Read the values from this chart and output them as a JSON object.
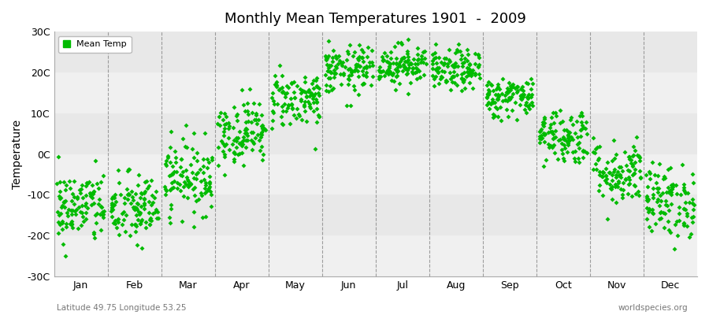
{
  "title": "Monthly Mean Temperatures 1901  -  2009",
  "ylabel": "Temperature",
  "subtitle_left": "Latitude 49.75 Longitude 53.25",
  "subtitle_right": "worldspecies.org",
  "legend_label": "Mean Temp",
  "dot_color": "#00bb00",
  "bg_color": "#ffffff",
  "plot_bg_color": "#ffffff",
  "band_colors": [
    "#f0f0f0",
    "#e8e8e8"
  ],
  "ylim": [
    -30,
    30
  ],
  "yticks": [
    -30,
    -20,
    -10,
    0,
    10,
    20,
    30
  ],
  "ytick_labels": [
    "-30C",
    "-20C",
    "-10C",
    "0C",
    "10C",
    "20C",
    "30C"
  ],
  "months": [
    "Jan",
    "Feb",
    "Mar",
    "Apr",
    "May",
    "Jun",
    "Jul",
    "Aug",
    "Sep",
    "Oct",
    "Nov",
    "Dec"
  ],
  "month_means": [
    -13.0,
    -13.5,
    -5.5,
    5.5,
    13.5,
    20.5,
    22.0,
    20.5,
    14.0,
    4.5,
    -4.5,
    -11.5
  ],
  "month_stds": [
    4.5,
    4.5,
    4.5,
    4.0,
    3.5,
    3.0,
    2.5,
    2.5,
    2.5,
    3.5,
    4.0,
    4.5
  ],
  "n_years": 109,
  "seed": 42,
  "marker": "D",
  "marker_size": 3
}
